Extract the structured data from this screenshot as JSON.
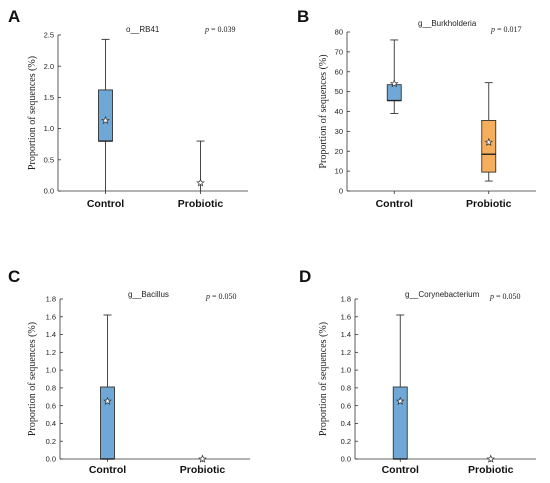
{
  "chart_data": [
    {
      "type": "box",
      "panel": "A",
      "title": "o__RB41",
      "p_value": "0.039",
      "ylabel": "Proportion of sequences (%)",
      "ylim": [
        0,
        2.5
      ],
      "yticks": [
        "0.0",
        "0.5",
        "1.0",
        "1.5",
        "2.0",
        "2.5"
      ],
      "categories": [
        "Control",
        "Probiotic"
      ],
      "boxes": [
        {
          "min": 0,
          "q1": 0.8,
          "median": 0.8,
          "q3": 1.62,
          "max": 2.43,
          "mean": 1.13,
          "color": "#6fa8d6"
        },
        {
          "min": 0,
          "q1": 0,
          "median": 0,
          "q3": 0,
          "max": 0.8,
          "mean": 0.13,
          "color": "#6fa8d6"
        }
      ]
    },
    {
      "type": "box",
      "panel": "B",
      "title": "g__Burkholderia",
      "p_value": "0.017",
      "ylabel": "Proportion of sequences (%)",
      "ylim": [
        0,
        80
      ],
      "yticks": [
        "0",
        "10",
        "20",
        "30",
        "40",
        "50",
        "60",
        "70",
        "80"
      ],
      "categories": [
        "Control",
        "Probiotic"
      ],
      "boxes": [
        {
          "min": 39,
          "q1": 45.5,
          "median": 45.5,
          "q3": 53.5,
          "max": 76,
          "mean": 54,
          "color": "#6fa8d6"
        },
        {
          "min": 5,
          "q1": 9.5,
          "median": 18.5,
          "q3": 35.5,
          "max": 54.5,
          "mean": 24.5,
          "color": "#f5ae5c"
        }
      ]
    },
    {
      "type": "box",
      "panel": "C",
      "title": "g__Bacillus",
      "p_value": "0.050",
      "ylabel": "Proportion of sequences (%)",
      "ylim": [
        0,
        1.8
      ],
      "yticks": [
        "0.0",
        "0.2",
        "0.4",
        "0.6",
        "0.8",
        "1.0",
        "1.2",
        "1.4",
        "1.6",
        "1.8"
      ],
      "categories": [
        "Control",
        "Probiotic"
      ],
      "boxes": [
        {
          "min": 0,
          "q1": 0,
          "median": 0,
          "q3": 0.81,
          "max": 1.62,
          "mean": 0.65,
          "color": "#6fa8d6"
        },
        {
          "min": 0,
          "q1": 0,
          "median": 0,
          "q3": 0,
          "max": 0,
          "mean": 0,
          "color": "#6fa8d6"
        }
      ]
    },
    {
      "type": "box",
      "panel": "D",
      "title": "g__Corynebacterium",
      "p_value": "0.050",
      "ylabel": "Proportion of sequences (%)",
      "ylim": [
        0,
        1.8
      ],
      "yticks": [
        "0.0",
        "0.2",
        "0.4",
        "0.6",
        "0.8",
        "1.0",
        "1.2",
        "1.4",
        "1.6",
        "1.8"
      ],
      "categories": [
        "Control",
        "Probiotic"
      ],
      "boxes": [
        {
          "min": 0,
          "q1": 0,
          "median": 0,
          "q3": 0.81,
          "max": 1.62,
          "mean": 0.65,
          "color": "#6fa8d6"
        },
        {
          "min": 0,
          "q1": 0,
          "median": 0,
          "q3": 0,
          "max": 0,
          "mean": 0,
          "color": "#6fa8d6"
        }
      ]
    }
  ]
}
